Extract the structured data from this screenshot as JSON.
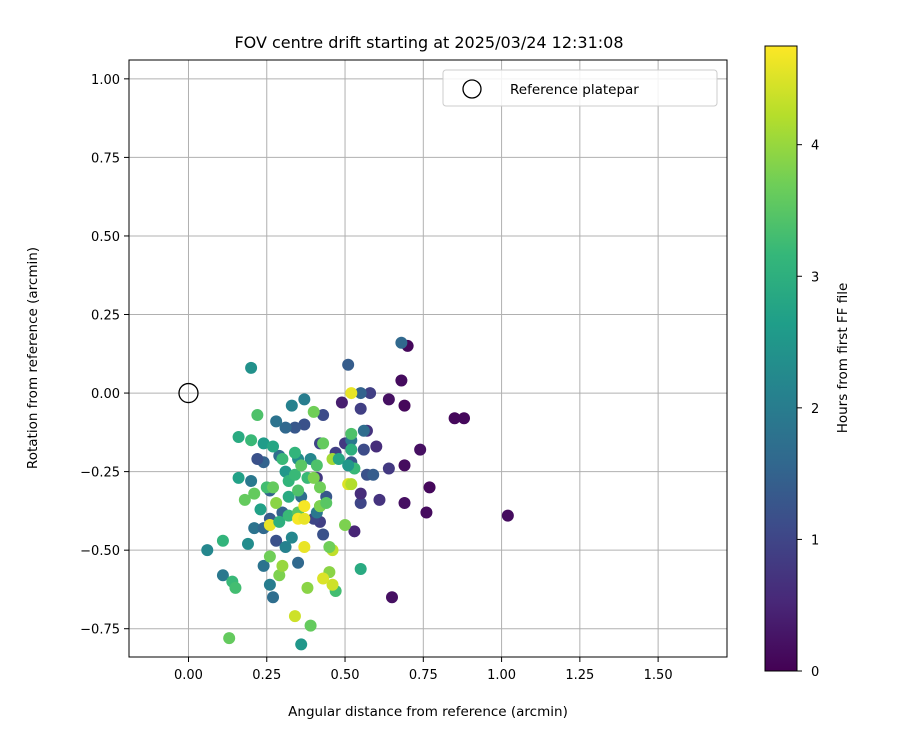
{
  "chart_data": {
    "type": "scatter",
    "title": "FOV centre drift starting at 2025/03/24 12:31:08",
    "xlabel": "Angular distance from reference (arcmin)",
    "ylabel": "Rotation from reference (arcmin)",
    "xlim": [
      -0.19,
      1.72
    ],
    "ylim": [
      -0.84,
      1.06
    ],
    "xticks": [
      0.0,
      0.25,
      0.5,
      0.75,
      1.0,
      1.25,
      1.5
    ],
    "xtick_labels": [
      "0.00",
      "0.25",
      "0.50",
      "0.75",
      "1.00",
      "1.25",
      "1.50"
    ],
    "yticks": [
      -0.75,
      -0.5,
      -0.25,
      0.0,
      0.25,
      0.5,
      0.75,
      1.0
    ],
    "ytick_labels": [
      "−0.75",
      "−0.50",
      "−0.25",
      "0.00",
      "0.25",
      "0.50",
      "0.75",
      "1.00"
    ],
    "grid": true,
    "legend": {
      "placement": "top-right",
      "entries": [
        {
          "label": "Reference platepar",
          "marker": "open-circle"
        }
      ]
    },
    "reference_point": {
      "x": 0.0,
      "y": 0.0
    },
    "colorbar": {
      "label": "Hours from first FF file",
      "range": [
        0,
        4.75
      ],
      "ticks": [
        0,
        1,
        2,
        3,
        4
      ],
      "tick_labels": [
        "0",
        "1",
        "2",
        "3",
        "4"
      ],
      "colormap": "viridis",
      "colormap_stops": [
        "#440154",
        "#482878",
        "#3e4989",
        "#31688e",
        "#26828e",
        "#1f9e89",
        "#35b779",
        "#6ece58",
        "#b5de2b",
        "#fde725"
      ]
    },
    "series": [
      {
        "points": [
          [
            0.7,
            0.15,
            0.1
          ],
          [
            0.68,
            0.04,
            0.15
          ],
          [
            0.69,
            -0.04,
            0.1
          ],
          [
            0.64,
            -0.02,
            0.2
          ],
          [
            0.88,
            -0.08,
            0.1
          ],
          [
            0.85,
            -0.08,
            0.1
          ],
          [
            1.02,
            -0.39,
            0.15
          ],
          [
            0.74,
            -0.18,
            0.2
          ],
          [
            0.77,
            -0.3,
            0.1
          ],
          [
            0.69,
            -0.23,
            0.15
          ],
          [
            0.69,
            -0.35,
            0.2
          ],
          [
            0.76,
            -0.38,
            0.15
          ],
          [
            0.65,
            -0.65,
            0.2
          ],
          [
            0.6,
            -0.17,
            0.6
          ],
          [
            0.61,
            -0.34,
            0.7
          ],
          [
            0.64,
            -0.24,
            0.8
          ],
          [
            0.53,
            -0.44,
            0.5
          ],
          [
            0.49,
            -0.03,
            0.4
          ],
          [
            0.55,
            -0.05,
            0.9
          ],
          [
            0.58,
            0.0,
            0.9
          ],
          [
            0.57,
            -0.12,
            0.7
          ],
          [
            0.56,
            -0.18,
            1.1
          ],
          [
            0.57,
            -0.26,
            1.2
          ],
          [
            0.55,
            -0.35,
            1.0
          ],
          [
            0.55,
            -0.32,
            0.6
          ],
          [
            0.52,
            -0.22,
            1.3
          ],
          [
            0.5,
            -0.16,
            0.8
          ],
          [
            0.47,
            -0.19,
            0.9
          ],
          [
            0.43,
            -0.07,
            1.1
          ],
          [
            0.51,
            0.09,
            1.4
          ],
          [
            0.55,
            0.0,
            1.5
          ],
          [
            0.68,
            0.16,
            1.6
          ],
          [
            0.59,
            -0.26,
            1.4
          ],
          [
            0.56,
            -0.12,
            1.7
          ],
          [
            0.52,
            -0.15,
            1.9
          ],
          [
            0.42,
            -0.16,
            1.0
          ],
          [
            0.41,
            -0.27,
            0.8
          ],
          [
            0.42,
            -0.41,
            0.9
          ],
          [
            0.4,
            -0.4,
            1.0
          ],
          [
            0.43,
            -0.45,
            1.2
          ],
          [
            0.44,
            -0.33,
            1.3
          ],
          [
            0.37,
            -0.1,
            1.2
          ],
          [
            0.34,
            -0.11,
            1.3
          ],
          [
            0.31,
            -0.11,
            1.6
          ],
          [
            0.28,
            -0.09,
            1.8
          ],
          [
            0.33,
            -0.04,
            2.1
          ],
          [
            0.37,
            -0.02,
            2.0
          ],
          [
            0.29,
            -0.2,
            1.7
          ],
          [
            0.26,
            -0.31,
            1.5
          ],
          [
            0.24,
            -0.22,
            1.5
          ],
          [
            0.22,
            -0.21,
            1.2
          ],
          [
            0.2,
            -0.28,
            1.9
          ],
          [
            0.21,
            -0.43,
            1.8
          ],
          [
            0.24,
            -0.43,
            1.6
          ],
          [
            0.28,
            -0.47,
            1.2
          ],
          [
            0.26,
            -0.4,
            1.4
          ],
          [
            0.24,
            -0.55,
            1.8
          ],
          [
            0.27,
            -0.65,
            1.7
          ],
          [
            0.26,
            -0.61,
            2.0
          ],
          [
            0.35,
            -0.54,
            1.6
          ],
          [
            0.3,
            -0.38,
            1.5
          ],
          [
            0.36,
            -0.33,
            1.7
          ],
          [
            0.41,
            -0.38,
            1.9
          ],
          [
            0.39,
            -0.21,
            2.2
          ],
          [
            0.35,
            -0.21,
            2.3
          ],
          [
            0.31,
            -0.25,
            2.5
          ],
          [
            0.33,
            -0.46,
            2.2
          ],
          [
            0.31,
            -0.49,
            2.1
          ],
          [
            0.19,
            -0.48,
            2.3
          ],
          [
            0.11,
            -0.58,
            1.9
          ],
          [
            0.06,
            -0.5,
            2.2
          ],
          [
            0.11,
            -0.47,
            3.1
          ],
          [
            0.14,
            -0.6,
            3.2
          ],
          [
            0.15,
            -0.62,
            3.3
          ],
          [
            0.13,
            -0.78,
            3.6
          ],
          [
            0.36,
            -0.8,
            2.5
          ],
          [
            0.39,
            -0.74,
            3.6
          ],
          [
            0.38,
            -0.62,
            3.9
          ],
          [
            0.47,
            -0.63,
            3.3
          ],
          [
            0.55,
            -0.56,
            2.9
          ],
          [
            0.46,
            -0.5,
            4.3
          ],
          [
            0.46,
            -0.61,
            4.4
          ],
          [
            0.45,
            -0.57,
            3.9
          ],
          [
            0.43,
            -0.59,
            4.5
          ],
          [
            0.45,
            -0.49,
            3.7
          ],
          [
            0.37,
            -0.49,
            4.6
          ],
          [
            0.34,
            -0.71,
            4.4
          ],
          [
            0.29,
            -0.58,
            3.8
          ],
          [
            0.3,
            -0.55,
            4.0
          ],
          [
            0.26,
            -0.52,
            3.7
          ],
          [
            0.26,
            -0.42,
            4.6
          ],
          [
            0.28,
            -0.35,
            3.9
          ],
          [
            0.18,
            -0.34,
            3.6
          ],
          [
            0.2,
            -0.15,
            3.2
          ],
          [
            0.16,
            -0.14,
            2.9
          ],
          [
            0.16,
            -0.27,
            2.7
          ],
          [
            0.23,
            -0.37,
            2.7
          ],
          [
            0.21,
            -0.32,
            3.6
          ],
          [
            0.24,
            -0.16,
            2.6
          ],
          [
            0.22,
            -0.07,
            3.4
          ],
          [
            0.2,
            0.08,
            2.4
          ],
          [
            0.25,
            -0.3,
            3.3
          ],
          [
            0.27,
            -0.3,
            3.6
          ],
          [
            0.27,
            -0.17,
            2.8
          ],
          [
            0.29,
            -0.41,
            3.0
          ],
          [
            0.32,
            -0.33,
            2.9
          ],
          [
            0.32,
            -0.39,
            3.2
          ],
          [
            0.32,
            -0.28,
            3.1
          ],
          [
            0.3,
            -0.21,
            3.2
          ],
          [
            0.34,
            -0.19,
            3.1
          ],
          [
            0.34,
            -0.26,
            3.2
          ],
          [
            0.35,
            -0.31,
            3.4
          ],
          [
            0.35,
            -0.38,
            3.5
          ],
          [
            0.35,
            -0.4,
            4.7
          ],
          [
            0.37,
            -0.4,
            4.6
          ],
          [
            0.37,
            -0.36,
            4.7
          ],
          [
            0.36,
            -0.23,
            3.5
          ],
          [
            0.38,
            -0.27,
            3.2
          ],
          [
            0.4,
            -0.27,
            3.8
          ],
          [
            0.4,
            -0.06,
            3.7
          ],
          [
            0.41,
            -0.23,
            3.4
          ],
          [
            0.42,
            -0.36,
            4.1
          ],
          [
            0.42,
            -0.36,
            3.8
          ],
          [
            0.42,
            -0.3,
            3.7
          ],
          [
            0.43,
            -0.16,
            3.6
          ],
          [
            0.44,
            -0.35,
            3.5
          ],
          [
            0.46,
            -0.21,
            4.1
          ],
          [
            0.51,
            -0.29,
            4.5
          ],
          [
            0.5,
            -0.42,
            3.8
          ],
          [
            0.52,
            -0.13,
            3.4
          ],
          [
            0.52,
            -0.18,
            3.0
          ],
          [
            0.53,
            -0.24,
            3.2
          ],
          [
            0.52,
            -0.29,
            4.2
          ],
          [
            0.52,
            0.0,
            4.6
          ],
          [
            0.48,
            -0.21,
            2.8
          ],
          [
            0.51,
            -0.23,
            2.5
          ]
        ]
      }
    ]
  }
}
